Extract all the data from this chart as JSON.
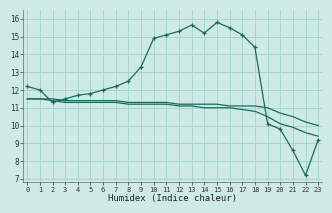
{
  "xlabel": "Humidex (Indice chaleur)",
  "xlim": [
    -0.3,
    23.3
  ],
  "ylim": [
    6.8,
    16.5
  ],
  "yticks": [
    7,
    8,
    9,
    10,
    11,
    12,
    13,
    14,
    15,
    16
  ],
  "xticks": [
    0,
    1,
    2,
    3,
    4,
    5,
    6,
    7,
    8,
    9,
    10,
    11,
    12,
    13,
    14,
    15,
    16,
    17,
    18,
    19,
    20,
    21,
    22,
    23
  ],
  "bg_color": "#ceeae6",
  "grid_color": "#a8d5cf",
  "line_color": "#1a6b5a",
  "main_y": [
    12.2,
    12.0,
    11.3,
    11.5,
    11.7,
    11.8,
    12.0,
    12.2,
    12.5,
    13.3,
    14.9,
    15.1,
    15.3,
    15.65,
    15.2,
    15.8,
    15.5,
    15.1,
    14.4,
    10.1,
    9.8,
    8.6,
    7.2,
    9.2
  ],
  "line2_y": [
    11.5,
    11.5,
    11.5,
    11.4,
    11.4,
    11.4,
    11.4,
    11.4,
    11.3,
    11.3,
    11.3,
    11.3,
    11.2,
    11.2,
    11.2,
    11.2,
    11.1,
    11.1,
    11.1,
    11.0,
    10.7,
    10.5,
    10.2,
    10.0
  ],
  "line3_y": [
    11.5,
    11.5,
    11.4,
    11.3,
    11.3,
    11.3,
    11.3,
    11.3,
    11.2,
    11.2,
    11.2,
    11.2,
    11.1,
    11.1,
    11.0,
    11.0,
    11.0,
    10.9,
    10.8,
    10.5,
    10.1,
    9.9,
    9.6,
    9.4
  ]
}
